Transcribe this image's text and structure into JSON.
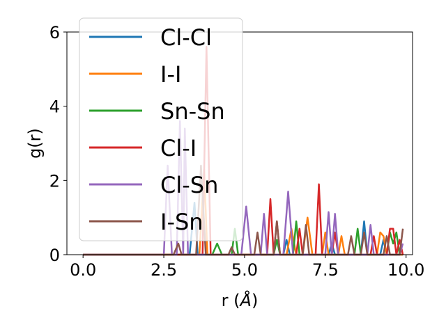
{
  "chart_data": {
    "type": "line",
    "xlabel": "r (",
    "xlabel_unit": "Å",
    "xlabel_close": ")",
    "ylabel": "g(r)",
    "xlim": [
      -0.5,
      10.2
    ],
    "ylim": [
      0,
      6
    ],
    "x_ticks": [
      0.0,
      2.5,
      5.0,
      7.5,
      10.0
    ],
    "x_tick_labels": [
      "0.0",
      "2.5",
      "5.0",
      "7.5",
      "10.0"
    ],
    "y_ticks": [
      0,
      2,
      4,
      6
    ],
    "y_tick_labels": [
      "0",
      "2",
      "4",
      "6"
    ],
    "grid": false,
    "legend_placement": "upper-left",
    "series": [
      {
        "name": "Cl-Cl",
        "color": "#1f77b4",
        "points": [
          [
            0,
            0
          ],
          [
            3.3,
            0
          ],
          [
            3.45,
            1.4
          ],
          [
            3.55,
            0
          ],
          [
            6.2,
            0
          ],
          [
            6.3,
            0.4
          ],
          [
            6.4,
            0
          ],
          [
            7.6,
            0
          ],
          [
            7.7,
            0.3
          ],
          [
            7.8,
            0
          ],
          [
            8.6,
            0
          ],
          [
            8.7,
            0.9
          ],
          [
            8.8,
            0
          ],
          [
            9.2,
            0
          ],
          [
            9.3,
            0.4
          ],
          [
            9.4,
            0
          ],
          [
            9.9,
            0
          ]
        ]
      },
      {
        "name": "I-I",
        "color": "#ff7f0e",
        "points": [
          [
            0,
            0
          ],
          [
            3.6,
            0
          ],
          [
            3.75,
            2.3
          ],
          [
            3.85,
            0
          ],
          [
            6.3,
            0
          ],
          [
            6.45,
            0.7
          ],
          [
            6.6,
            0
          ],
          [
            6.8,
            0
          ],
          [
            6.95,
            1.0
          ],
          [
            7.1,
            0
          ],
          [
            7.4,
            0
          ],
          [
            7.5,
            0.6
          ],
          [
            7.6,
            0
          ],
          [
            7.9,
            0
          ],
          [
            8.0,
            0.5
          ],
          [
            8.1,
            0
          ],
          [
            9.1,
            0
          ],
          [
            9.2,
            0.6
          ],
          [
            9.3,
            0.5
          ],
          [
            9.4,
            0
          ],
          [
            9.9,
            0
          ]
        ]
      },
      {
        "name": "Sn-Sn",
        "color": "#2ca02c",
        "points": [
          [
            0,
            0
          ],
          [
            4.0,
            0
          ],
          [
            4.15,
            0.3
          ],
          [
            4.3,
            0
          ],
          [
            4.6,
            0
          ],
          [
            4.7,
            0.7
          ],
          [
            4.8,
            0
          ],
          [
            5.9,
            0
          ],
          [
            6.0,
            0.4
          ],
          [
            6.1,
            0
          ],
          [
            6.5,
            0
          ],
          [
            6.6,
            0.9
          ],
          [
            6.7,
            0
          ],
          [
            8.4,
            0
          ],
          [
            8.5,
            0.7
          ],
          [
            8.6,
            0
          ],
          [
            9.4,
            0
          ],
          [
            9.5,
            0.6
          ],
          [
            9.6,
            0.3
          ],
          [
            9.7,
            0.6
          ],
          [
            9.8,
            0
          ]
        ]
      },
      {
        "name": "Cl-I",
        "color": "#d62728",
        "points": [
          [
            0,
            0
          ],
          [
            3.7,
            0
          ],
          [
            3.82,
            5.6
          ],
          [
            3.95,
            0
          ],
          [
            5.7,
            0
          ],
          [
            5.8,
            1.5
          ],
          [
            5.9,
            0
          ],
          [
            6.0,
            0.9
          ],
          [
            6.1,
            0
          ],
          [
            6.6,
            0
          ],
          [
            6.7,
            0.7
          ],
          [
            6.8,
            0
          ],
          [
            7.2,
            0
          ],
          [
            7.3,
            1.9
          ],
          [
            7.4,
            0
          ],
          [
            7.7,
            0
          ],
          [
            7.8,
            0.6
          ],
          [
            7.9,
            0
          ],
          [
            8.9,
            0
          ],
          [
            9.0,
            0.5
          ],
          [
            9.1,
            0
          ],
          [
            9.4,
            0
          ],
          [
            9.5,
            0.7
          ],
          [
            9.6,
            0.7
          ],
          [
            9.7,
            0
          ],
          [
            9.8,
            0.4
          ],
          [
            9.9,
            0
          ]
        ]
      },
      {
        "name": "Cl-Sn",
        "color": "#9467bd",
        "points": [
          [
            0,
            0
          ],
          [
            2.5,
            0
          ],
          [
            2.62,
            2.4
          ],
          [
            2.75,
            0
          ],
          [
            2.9,
            0
          ],
          [
            3.0,
            3.6
          ],
          [
            3.1,
            0
          ],
          [
            3.15,
            3.4
          ],
          [
            3.25,
            0
          ],
          [
            4.9,
            0
          ],
          [
            5.05,
            1.3
          ],
          [
            5.2,
            0
          ],
          [
            5.5,
            0
          ],
          [
            5.6,
            1.1
          ],
          [
            5.7,
            0
          ],
          [
            6.2,
            0
          ],
          [
            6.35,
            1.7
          ],
          [
            6.5,
            0
          ],
          [
            7.5,
            0
          ],
          [
            7.6,
            1.15
          ],
          [
            7.7,
            0
          ],
          [
            7.8,
            1.1
          ],
          [
            7.9,
            0
          ],
          [
            8.8,
            0
          ],
          [
            8.9,
            0.8
          ],
          [
            9.0,
            0
          ],
          [
            9.8,
            0
          ],
          [
            9.9,
            0.3
          ]
        ]
      },
      {
        "name": "I-Sn",
        "color": "#8c564b",
        "points": [
          [
            0,
            0
          ],
          [
            2.8,
            0
          ],
          [
            2.95,
            0.3
          ],
          [
            3.05,
            0
          ],
          [
            3.5,
            0
          ],
          [
            3.65,
            2.4
          ],
          [
            3.8,
            0
          ],
          [
            4.5,
            0
          ],
          [
            4.6,
            0.2
          ],
          [
            4.7,
            0
          ],
          [
            5.3,
            0
          ],
          [
            5.4,
            0.6
          ],
          [
            5.5,
            0
          ],
          [
            5.9,
            0
          ],
          [
            6.0,
            0.9
          ],
          [
            6.1,
            0
          ],
          [
            6.8,
            0
          ],
          [
            6.9,
            0.8
          ],
          [
            7.0,
            0
          ],
          [
            8.2,
            0
          ],
          [
            8.3,
            0.5
          ],
          [
            8.4,
            0
          ],
          [
            8.6,
            0
          ],
          [
            8.7,
            0.6
          ],
          [
            8.8,
            0
          ],
          [
            9.3,
            0
          ],
          [
            9.4,
            0.5
          ],
          [
            9.5,
            0
          ],
          [
            9.8,
            0
          ],
          [
            9.9,
            0.7
          ]
        ]
      }
    ]
  }
}
